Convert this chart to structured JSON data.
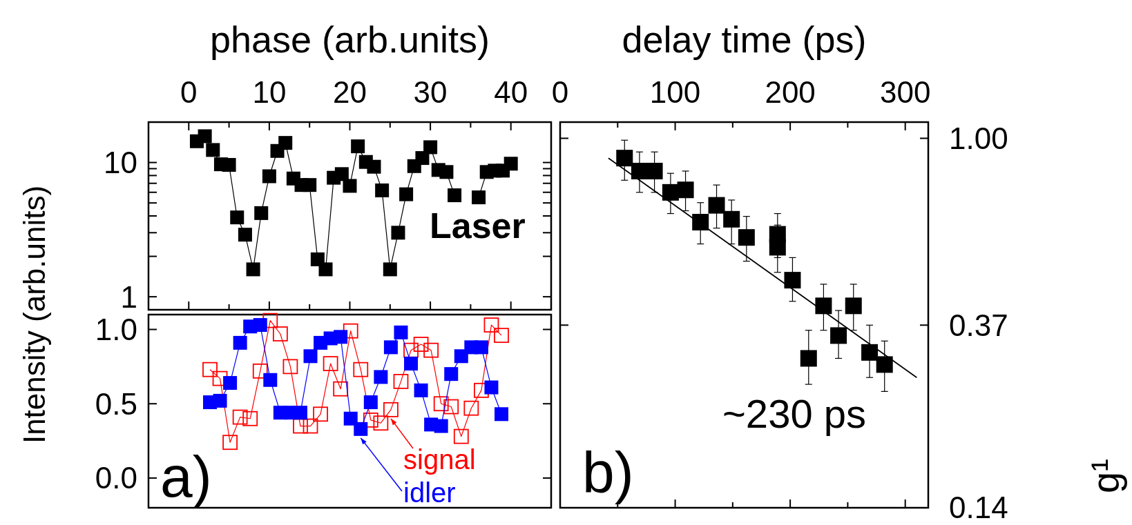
{
  "chart_data": [
    {
      "type": "line",
      "xlabel": "phase (arb.units)",
      "ylabel": "Intensity (arb.units)",
      "xlim": [
        -5,
        45
      ],
      "xticks": [
        0,
        {
          "value": 5,
          "label": null
        },
        10,
        {
          "value": 15,
          "label": null
        },
        20,
        {
          "value": 25,
          "label": null
        },
        30,
        {
          "value": 35,
          "label": null
        },
        40
      ],
      "ylim": [
        0.8,
        20
      ],
      "yticks": [
        1,
        {
          "value": 2,
          "label": null
        },
        {
          "value": 3,
          "label": null
        },
        {
          "value": 4,
          "label": null
        },
        {
          "value": 5,
          "label": null
        },
        {
          "value": 6,
          "label": null
        },
        {
          "value": 7,
          "label": null
        },
        {
          "value": 8,
          "label": null
        },
        {
          "value": 9,
          "label": null
        },
        10
      ],
      "log": "y",
      "marker": "square",
      "x": [
        1,
        2,
        3,
        4,
        5,
        6,
        7,
        8,
        9,
        10,
        11,
        12,
        13,
        14,
        15,
        16,
        17,
        18,
        19,
        20,
        21,
        22,
        23,
        24,
        25,
        26,
        27,
        28,
        29,
        30,
        31,
        32,
        33,
        34,
        35,
        36,
        37,
        38,
        39,
        40
      ],
      "series": [
        {
          "name": "Laser",
          "color": "#000000",
          "values": [
            14.4,
            15.7,
            12.4,
            9.7,
            9.6,
            3.9,
            2.9,
            1.6,
            4.2,
            7.9,
            12.2,
            14.0,
            7.6,
            6.8,
            6.8,
            1.9,
            1.6,
            7.7,
            8.2,
            6.7,
            13.2,
            10.1,
            9.3,
            6.2,
            1.6,
            3.0,
            5.8,
            9.4,
            10.8,
            13.0,
            8.8,
            8.5,
            5.7,
            null,
            null,
            5.5,
            8.5,
            8.7,
            8.7,
            9.8
          ]
        }
      ]
    },
    {
      "type": "line",
      "categories": [
        null,
        null,
        null,
        null,
        null,
        null,
        null,
        null,
        null,
        null,
        null,
        null,
        null,
        null,
        null,
        null,
        null,
        null,
        null,
        null,
        null,
        null,
        null,
        null,
        null,
        null,
        null,
        null,
        null,
        null
      ],
      "ylim": [
        -0.2,
        1.1
      ],
      "yticks": [
        {
          "value": 0,
          "label": "0.0"
        },
        0.5,
        {
          "value": 1,
          "label": "1.0"
        }
      ],
      "tick_labels": "y",
      "marker": "square",
      "annotations": [
        "a)"
      ],
      "series": [
        {
          "name": "signal",
          "color": "#ff0000",
          "values": [
            0.73,
            0.67,
            0.24,
            0.41,
            0.4,
            0.72,
            1.06,
            0.97,
            0.75,
            0.35,
            0.35,
            0.43,
            0.77,
            0.6,
            0.99,
            0.73,
            0.39,
            0.37,
            0.46,
            0.65,
            0.86,
            0.9,
            0.86,
            0.5,
            0.48,
            0.28,
            0.47,
            0.59,
            1.03,
            0.96
          ]
        },
        {
          "name": "idler",
          "color": "#0000ff",
          "values": [
            0.51,
            0.52,
            0.64,
            0.91,
            1.02,
            1.03,
            0.66,
            0.44,
            0.44,
            0.44,
            0.82,
            0.91,
            0.94,
            0.95,
            0.4,
            0.33,
            0.51,
            0.68,
            0.88,
            0.98,
            0.77,
            0.59,
            0.36,
            0.35,
            0.7,
            0.82,
            0.88,
            0.88,
            0.61,
            0.43
          ]
        }
      ]
    },
    {
      "type": "scatter",
      "xlabel": "delay time (ps)",
      "ylabel": "g¹",
      "xlim": [
        0,
        320
      ],
      "xticks": [
        0,
        {
          "value": 50,
          "label": null
        },
        100,
        {
          "value": 150,
          "label": null
        },
        200,
        {
          "value": 250,
          "label": null
        },
        300
      ],
      "ylim": [
        0.14,
        1.09
      ],
      "yticks": [
        {
          "value": 1,
          "label": "1.00"
        },
        0.37,
        0.14
      ],
      "log": "y",
      "marker": "square",
      "annotations": [
        "~230 ps",
        "b)"
      ],
      "series": [
        {
          "color": "#000000",
          "x": [
            56,
            69,
            82,
            96,
            109,
            122,
            136,
            149,
            162,
            189,
            189,
            202,
            216,
            229,
            242,
            255,
            269,
            282
          ],
          "values": [
            0.9,
            0.84,
            0.84,
            0.75,
            0.76,
            0.64,
            0.7,
            0.65,
            0.59,
            0.6,
            0.56,
            0.47,
            0.31,
            0.41,
            0.35,
            0.41,
            0.32,
            0.3
          ],
          "errors": [
            [
              0.8,
              0.99
            ],
            [
              0.75,
              0.93
            ],
            [
              0.75,
              0.93
            ],
            [
              0.67,
              0.83
            ],
            [
              0.68,
              0.84
            ],
            [
              0.57,
              0.71
            ],
            [
              0.62,
              0.78
            ],
            [
              0.57,
              0.72
            ],
            [
              0.52,
              0.66
            ],
            [
              0.53,
              0.67
            ],
            [
              0.49,
              0.63
            ],
            [
              0.42,
              0.53
            ],
            [
              0.27,
              0.36
            ],
            [
              0.36,
              0.46
            ],
            [
              0.31,
              0.4
            ],
            [
              0.36,
              0.46
            ],
            [
              0.28,
              0.37
            ],
            [
              0.26,
              0.34
            ]
          ]
        },
        {
          "type": "line",
          "color": "#000000",
          "marker": "none",
          "x": [
            42,
            310
          ],
          "values": [
            0.9,
            0.28
          ]
        }
      ]
    }
  ]
}
